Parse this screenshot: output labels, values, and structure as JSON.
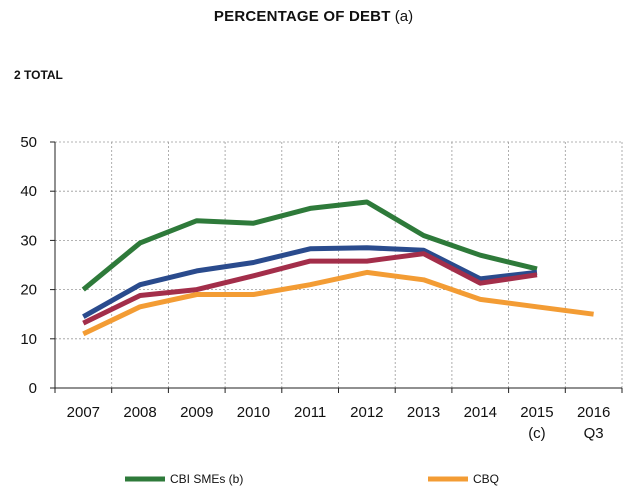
{
  "title": {
    "main": "PERCENTAGE OF DEBT",
    "suffix": "(a)"
  },
  "subtitle": "2  TOTAL",
  "colors": {
    "cbi_smes": "#2e7a3a",
    "cbq": "#f39c34",
    "blue": "#2a4b8d",
    "red": "#a32e4a",
    "grid": "#9a9a9a",
    "axis": "#222222"
  },
  "chart_data": {
    "type": "line",
    "categories": [
      "2007",
      "2008",
      "2009",
      "2010",
      "2011",
      "2012",
      "2013",
      "2014",
      "2015",
      "2016"
    ],
    "category_sublabels": [
      "",
      "",
      "",
      "",
      "",
      "",
      "",
      "",
      "(c)",
      "Q3"
    ],
    "ylim": [
      0,
      50
    ],
    "yticks": [
      0,
      10,
      20,
      30,
      40,
      50
    ],
    "grid": true,
    "series": [
      {
        "name": "CBI SMEs (b)",
        "color": "#2e7a3a",
        "values": [
          20,
          29.5,
          34,
          33.5,
          36.5,
          37.8,
          31,
          27,
          24.2,
          null
        ]
      },
      {
        "name": "",
        "color": "#2a4b8d",
        "values": [
          14.5,
          21,
          23.8,
          25.5,
          28.3,
          28.5,
          28,
          22.2,
          23.5,
          null
        ]
      },
      {
        "name": "",
        "color": "#a32e4a",
        "values": [
          13.2,
          18.8,
          20,
          22.8,
          25.8,
          25.8,
          27.3,
          21.3,
          23,
          null
        ]
      },
      {
        "name": "CBQ",
        "color": "#f39c34",
        "values": [
          11,
          16.5,
          19,
          19,
          21,
          23.5,
          22,
          18,
          16.5,
          15
        ]
      }
    ],
    "legend": [
      {
        "label": "CBI SMEs (b)",
        "color": "#2e7a3a"
      },
      {
        "label": "CBQ",
        "color": "#f39c34"
      }
    ],
    "legend_position": "bottom"
  }
}
